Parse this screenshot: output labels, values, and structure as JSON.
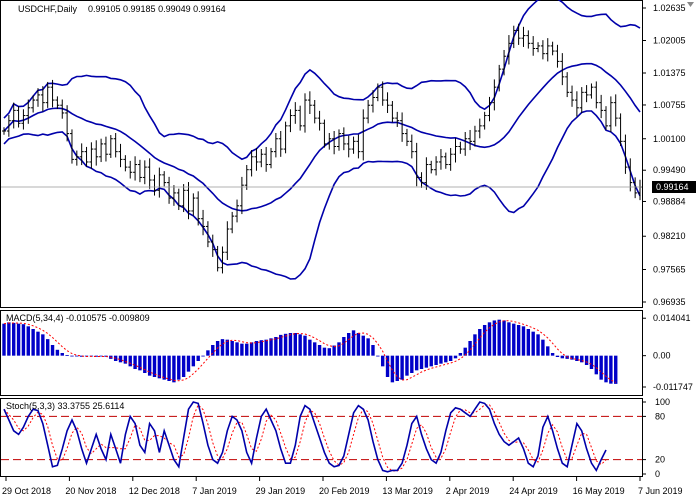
{
  "header": {
    "symbol": "USDCHF,Daily",
    "ohlc": "0.99105 0.99185 0.99049 0.99164"
  },
  "current_price_label": "0.99164",
  "colors": {
    "price_bars": "#000000",
    "bollinger": "#0000aa",
    "macd_hist": "#0000c8",
    "macd_signal": "#ff0000",
    "stoch_main": "#0000aa",
    "stoch_signal": "#ff0000",
    "level_line": "#c00000",
    "axis": "#000000"
  },
  "chart_data": [
    {
      "name": "price",
      "type": "bar",
      "title": "USDCHF,Daily",
      "y_ticks": [
        "1.02635",
        "1.02005",
        "1.01375",
        "1.00755",
        "1.00100",
        "0.99490",
        "0.98884",
        "0.98210",
        "0.97565",
        "0.96935"
      ],
      "ylim": [
        0.96935,
        1.02635
      ],
      "x_ticks": [
        "29 Oct 2018",
        "20 Nov 2018",
        "12 Dec 2018",
        "7 Jan 2019",
        "29 Jan 2019",
        "20 Feb 2019",
        "13 Mar 2019",
        "2 Apr 2019",
        "24 Apr 2019",
        "16 May 2019",
        "7 Jun 2019"
      ],
      "series": [
        {
          "type": "ohlc",
          "close": [
            1.0025,
            1.0045,
            1.0065,
            1.004,
            1.0055,
            1.007,
            1.0085,
            1.0095,
            1.008,
            1.011,
            1.0085,
            1.0075,
            1.006,
            1.002,
            0.997,
            0.9975,
            0.9985,
            0.9965,
            0.999,
            0.9975,
            1.0,
            0.998,
            1.001,
            0.9985,
            0.997,
            0.9955,
            0.9945,
            0.996,
            0.9935,
            0.9955,
            0.993,
            0.991,
            0.994,
            0.9925,
            0.9895,
            0.9905,
            0.988,
            0.991,
            0.987,
            0.9895,
            0.9855,
            0.984,
            0.981,
            0.9795,
            0.976,
            0.979,
            0.9835,
            0.986,
            0.988,
            0.992,
            0.995,
            0.9975,
            0.9965,
            0.998,
            0.996,
            0.9985,
            1.001,
            0.999,
            1.0035,
            1.0055,
            1.0065,
            1.0035,
            1.0085,
            1.0075,
            1.005,
            1.004,
            1.0,
            1.001,
            0.9995,
            1.002,
            1.0,
            0.999,
            1.0005,
            0.9985,
            1.005,
            1.0075,
            1.009,
            1.011,
            1.0085,
            1.0075,
            1.005,
            1.0045,
            1.002,
            1.0005,
            0.9985,
            0.9935,
            0.9925,
            0.996,
            0.995,
            0.9965,
            0.9975,
            0.996,
            0.998,
            0.9995,
            0.999,
            1.001,
            1.0005,
            1.0025,
            1.0035,
            1.0055,
            1.008,
            1.011,
            1.0145,
            1.017,
            1.0195,
            1.022,
            1.0205,
            1.021,
            1.0195,
            1.0185,
            1.019,
            1.0175,
            1.019,
            1.018,
            1.016,
            1.013,
            1.01,
            1.0085,
            1.007,
            1.01,
            1.0095,
            1.011,
            1.008,
            1.0065,
            1.0035,
            1.008,
            1.005,
            1.0005,
            0.9955,
            0.9925,
            0.9905,
            0.99164
          ]
        },
        {
          "name": "",
          "type": "line",
          "role": "bollinger_upper"
        },
        {
          "name": "",
          "type": "line",
          "role": "bollinger_middle"
        },
        {
          "name": "",
          "type": "line",
          "role": "bollinger_lower"
        }
      ],
      "grid": false
    },
    {
      "name": "macd",
      "type": "bar",
      "title": "MACD(5,34,4) -0.010575 -0.009809",
      "y_ticks": [
        "0.014041",
        "0.00",
        "-0.011747"
      ],
      "ylim": [
        -0.014,
        0.016
      ],
      "series": [
        {
          "name": "",
          "type": "bar",
          "values": [
            0.012,
            0.0125,
            0.0123,
            0.012,
            0.0118,
            0.011,
            0.01,
            0.009,
            0.008,
            0.0062,
            0.004,
            0.0022,
            0.001,
            0.0002,
            -0.0003,
            -0.0002,
            -0.0004,
            -0.0003,
            -0.0002,
            -0.0004,
            -0.0003,
            -0.0004,
            -0.0012,
            -0.002,
            -0.0025,
            -0.003,
            -0.004,
            -0.005,
            -0.0055,
            -0.0065,
            -0.0075,
            -0.008,
            -0.0085,
            -0.009,
            -0.0095,
            -0.01,
            -0.009,
            -0.008,
            -0.006,
            -0.004,
            -0.002,
            0.0,
            0.002,
            0.004,
            0.0055,
            0.0062,
            0.006,
            0.0055,
            0.005,
            0.0045,
            0.0045,
            0.005,
            0.0055,
            0.0058,
            0.006,
            0.0065,
            0.007,
            0.0078,
            0.0082,
            0.0085,
            0.0085,
            0.008,
            0.0075,
            0.006,
            0.005,
            0.004,
            0.003,
            0.0028,
            0.0038,
            0.005,
            0.007,
            0.0085,
            0.0095,
            0.0085,
            0.0075,
            0.0065,
            0.004,
            0.0,
            -0.004,
            -0.008,
            -0.01,
            -0.0095,
            -0.009,
            -0.0075,
            -0.0065,
            -0.0055,
            -0.005,
            -0.0045,
            -0.004,
            -0.0035,
            -0.003,
            -0.0025,
            -0.002,
            -0.001,
            0.001,
            0.003,
            0.0055,
            0.008,
            0.01,
            0.0115,
            0.0125,
            0.0132,
            0.0135,
            0.0132,
            0.0125,
            0.012,
            0.0115,
            0.011,
            0.01,
            0.009,
            0.008,
            0.006,
            0.0035,
            0.001,
            -0.0005,
            -0.001,
            -0.0012,
            -0.0015,
            -0.002,
            -0.0025,
            -0.0035,
            -0.005,
            -0.007,
            -0.009,
            -0.01,
            -0.0105,
            -0.010575
          ]
        },
        {
          "name": "",
          "type": "line",
          "role": "signal"
        }
      ]
    },
    {
      "name": "stochastic",
      "type": "line",
      "title": "Stoch(5,3,3) 33.3755 25.6114",
      "y_ticks": [
        "100",
        "80",
        "20",
        "0"
      ],
      "ylim": [
        0,
        100
      ],
      "levels": [
        80,
        20
      ],
      "series": [
        {
          "name": "",
          "values": [
            90,
            75,
            60,
            55,
            65,
            80,
            90,
            88,
            70,
            40,
            10,
            12,
            35,
            60,
            75,
            60,
            35,
            15,
            35,
            55,
            35,
            20,
            55,
            35,
            15,
            55,
            80,
            70,
            40,
            30,
            70,
            60,
            30,
            60,
            40,
            20,
            10,
            50,
            90,
            100,
            98,
            70,
            40,
            20,
            15,
            30,
            60,
            80,
            75,
            60,
            30,
            15,
            50,
            80,
            90,
            75,
            60,
            35,
            15,
            15,
            40,
            80,
            95,
            90,
            70,
            50,
            30,
            15,
            10,
            12,
            25,
            55,
            85,
            95,
            90,
            75,
            45,
            20,
            5,
            3,
            5,
            5,
            15,
            40,
            70,
            80,
            55,
            35,
            20,
            15,
            30,
            60,
            85,
            92,
            90,
            85,
            80,
            90,
            100,
            98,
            90,
            70,
            55,
            45,
            40,
            45,
            50,
            35,
            15,
            10,
            25,
            65,
            80,
            60,
            35,
            15,
            10,
            40,
            70,
            60,
            35,
            15,
            5,
            20,
            33.3755
          ]
        },
        {
          "name": "",
          "values": [],
          "role": "signal"
        }
      ]
    }
  ]
}
